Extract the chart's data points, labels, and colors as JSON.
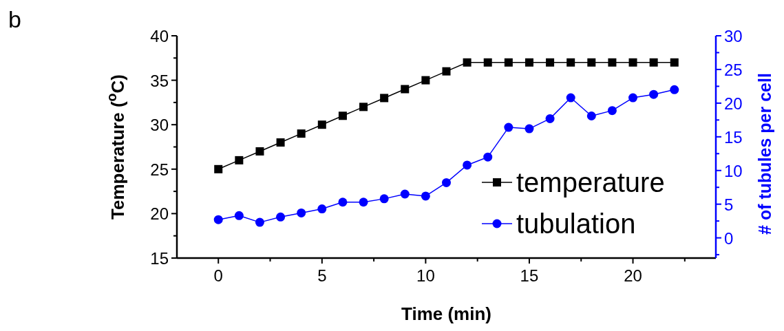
{
  "chart_data": {
    "type": "line",
    "xlabel": "Time (min)",
    "ylabel": "Temperature ($^{o}$C)",
    "y2label": "# of tubules per cell",
    "annotations": [
      "b"
    ],
    "x": [
      0,
      1,
      2,
      3,
      4,
      5,
      6,
      7,
      8,
      9,
      10,
      11,
      12,
      13,
      14,
      15,
      16,
      17,
      18,
      19,
      20,
      21,
      22
    ],
    "series": [
      {
        "name": "temperature",
        "color": "#000000",
        "marker": "square",
        "values": [
          25,
          26,
          27,
          28,
          29,
          30,
          31,
          32,
          33,
          34,
          35,
          36,
          37,
          37,
          37,
          37,
          37,
          37,
          37,
          37,
          37,
          37,
          37
        ]
      },
      {
        "name": "tubulation",
        "color": "#0000ff",
        "marker": "circle",
        "axis": "y2",
        "values": [
          2.7,
          3.3,
          2.3,
          3.1,
          3.7,
          4.3,
          5.3,
          5.3,
          5.8,
          6.5,
          6.2,
          8.2,
          10.8,
          12,
          16.4,
          16.2,
          17.7,
          20.8,
          18.1,
          18.9,
          20.8,
          21.3,
          22
        ]
      }
    ],
    "xlim": [
      -2,
      24
    ],
    "xticks": [
      0,
      {
        "value": 2.5,
        "label": null
      },
      5,
      {
        "value": 7.5,
        "label": null
      },
      10,
      {
        "value": 12.5,
        "label": null
      },
      15,
      {
        "value": 17.5,
        "label": null
      },
      20,
      {
        "value": 22.5,
        "label": null
      }
    ],
    "ylim": [
      15,
      40
    ],
    "yticks": [
      15,
      {
        "value": 17.5,
        "label": null
      },
      20,
      {
        "value": 22.5,
        "label": null
      },
      25,
      {
        "value": 27.5,
        "label": null
      },
      30,
      {
        "value": 32.5,
        "label": null
      },
      35,
      {
        "value": 37.5,
        "label": null
      },
      40
    ],
    "y2lim": [
      -3,
      30
    ],
    "y2ticks": [
      {
        "value": -2.5,
        "label": null
      },
      0,
      {
        "value": 2.5,
        "label": null
      },
      5,
      {
        "value": 7.5,
        "label": null
      },
      10,
      {
        "value": 12.5,
        "label": null
      },
      15,
      {
        "value": 17.5,
        "label": null
      },
      20,
      {
        "value": 22.5,
        "label": null
      },
      25,
      {
        "value": 27.5,
        "label": null
      },
      30
    ],
    "legend": "bottom right",
    "grid": false
  }
}
